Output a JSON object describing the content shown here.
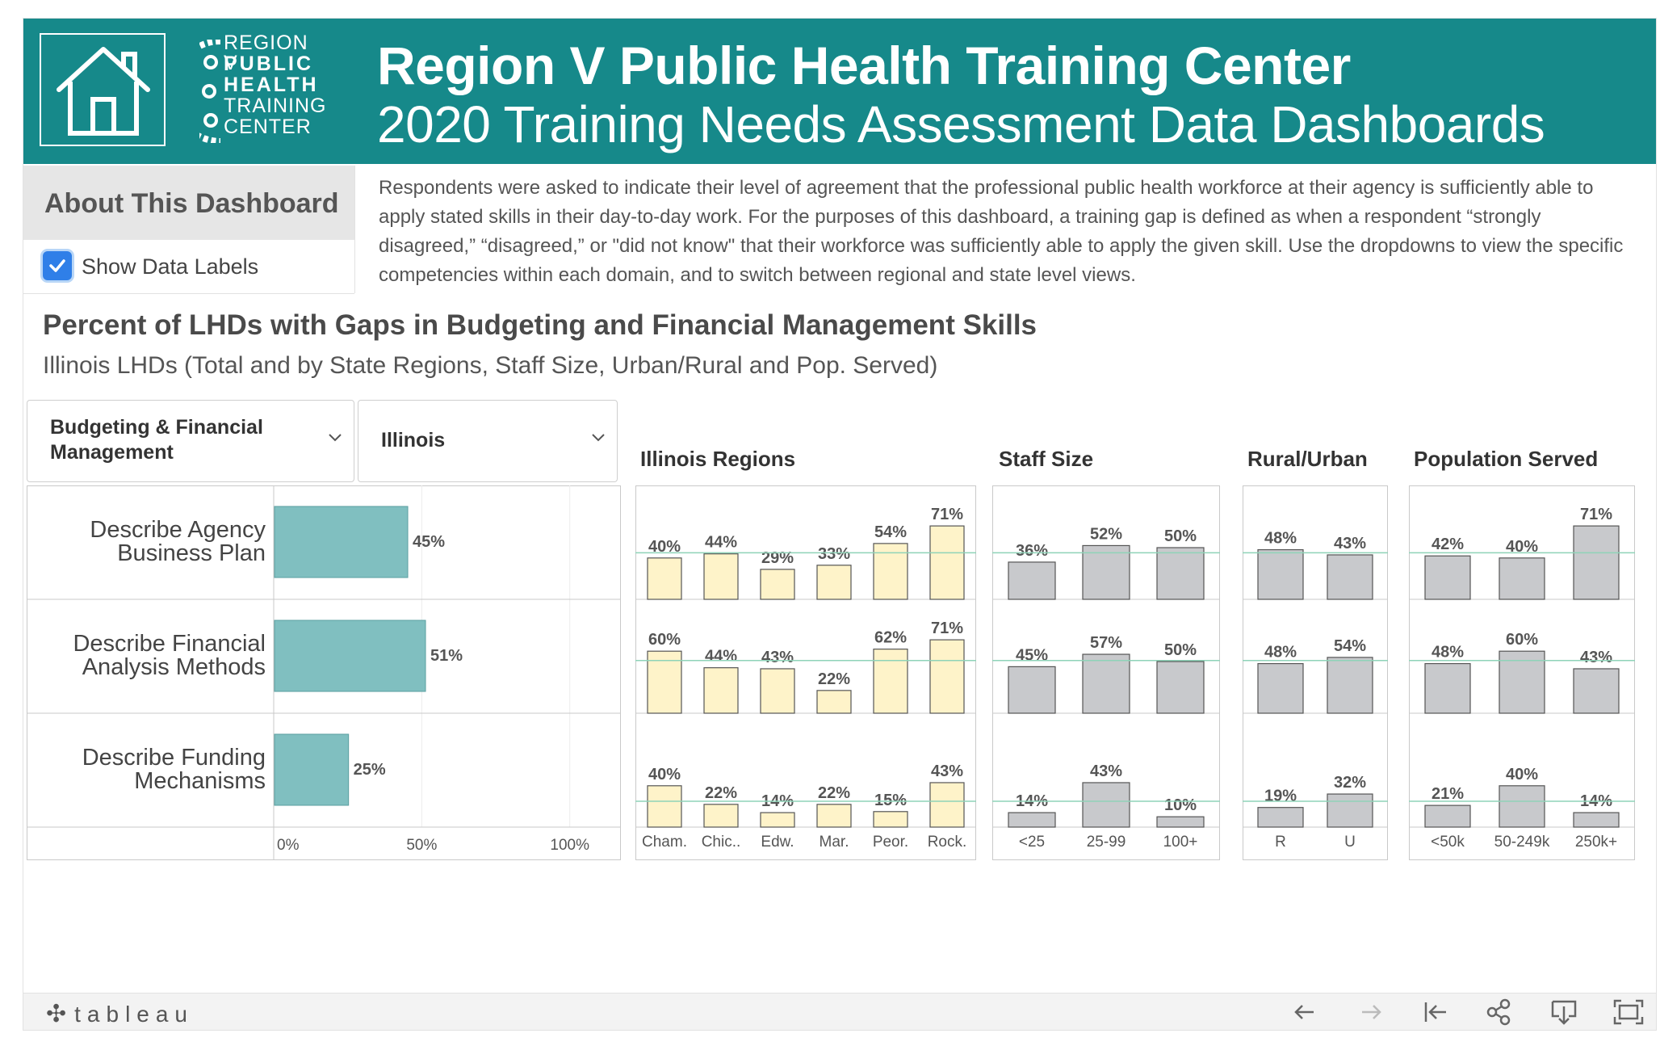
{
  "header": {
    "title_line1": "Region V Public Health Training Center",
    "title_line2": "2020 Training Needs Assessment Data Dashboards",
    "logo_lines": [
      "REGION V",
      "PUBLIC",
      "HEALTH",
      "TRAINING",
      "CENTER"
    ],
    "home_icon": "home-icon"
  },
  "about": {
    "title": "About This Dashboard",
    "show_data_labels": "Show Data Labels",
    "show_data_labels_checked": true,
    "description": "Respondents were asked to indicate their level of agreement that the professional public health workforce at their agency is sufficiently able to apply stated skills in their day-to-day work. For the purposes of this dashboard, a training gap is defined as when a respondent “strongly disagreed,” “disagreed,” or \"did not know\" that their workforce was sufficiently able to apply the given skill. Use the dropdowns to view the specific competencies within each domain, and to switch between regional and state level views."
  },
  "chart_title": "Percent of LHDs with Gaps in Budgeting and Financial Management Skills",
  "chart_subtitle": "Illinois LHDs (Total and by State Regions, Staff Size, Urban/Rural and Pop. Served)",
  "filters": {
    "domain": {
      "line1": "Budgeting & Financial",
      "line2": "Management"
    },
    "state": "Illinois"
  },
  "colors": {
    "header_bg": "#16898a",
    "total_bar": "#80bfc0",
    "region_bar": "#fef3c9",
    "group_bar": "#c8c9cc",
    "reference_line": "#8fd3b8"
  },
  "chart_data": {
    "type": "bar",
    "skills": [
      "Describe Agency Business Plan",
      "Describe Financial Analysis Methods",
      "Describe Funding Mechanisms"
    ],
    "skill_label_lines": [
      [
        "Describe Agency",
        "Business Plan"
      ],
      [
        "Describe Financial",
        "Analysis Methods"
      ],
      [
        "Describe Funding",
        "Mechanisms"
      ]
    ],
    "total": {
      "values": [
        45,
        51,
        25
      ],
      "labels": [
        "45%",
        "51%",
        "25%"
      ],
      "axis_ticks": [
        "0%",
        "50%",
        "100%"
      ],
      "xlim": [
        0,
        100
      ]
    },
    "panels": [
      {
        "title": "Illinois Regions",
        "categories": [
          "Cham.",
          "Chic..",
          "Edw.",
          "Mar.",
          "Peor.",
          "Rock."
        ],
        "series": [
          {
            "values": [
              40,
              44,
              29,
              33,
              54,
              71
            ],
            "labels": [
              "40%",
              "44%",
              "29%",
              "33%",
              "54%",
              "71%"
            ]
          },
          {
            "values": [
              60,
              44,
              43,
              22,
              62,
              71
            ],
            "labels": [
              "60%",
              "44%",
              "43%",
              "22%",
              "62%",
              "71%"
            ]
          },
          {
            "values": [
              40,
              22,
              14,
              22,
              15,
              43
            ],
            "labels": [
              "40%",
              "22%",
              "14%",
              "22%",
              "15%",
              "43%"
            ]
          }
        ]
      },
      {
        "title": "Staff Size",
        "categories": [
          "<25",
          "25-99",
          "100+"
        ],
        "series": [
          {
            "values": [
              36,
              52,
              50
            ],
            "labels": [
              "36%",
              "52%",
              "50%"
            ]
          },
          {
            "values": [
              45,
              57,
              50
            ],
            "labels": [
              "45%",
              "57%",
              "50%"
            ]
          },
          {
            "values": [
              14,
              43,
              10
            ],
            "labels": [
              "14%",
              "43%",
              "10%"
            ]
          }
        ]
      },
      {
        "title": "Rural/Urban",
        "categories": [
          "R",
          "U"
        ],
        "series": [
          {
            "values": [
              48,
              43
            ],
            "labels": [
              "48%",
              "43%"
            ]
          },
          {
            "values": [
              48,
              54
            ],
            "labels": [
              "48%",
              "54%"
            ]
          },
          {
            "values": [
              19,
              32
            ],
            "labels": [
              "19%",
              "32%"
            ]
          }
        ]
      },
      {
        "title": "Population Served",
        "categories": [
          "<50k",
          "50-249k",
          "250k+"
        ],
        "series": [
          {
            "values": [
              42,
              40,
              71
            ],
            "labels": [
              "42%",
              "40%",
              "71%"
            ]
          },
          {
            "values": [
              48,
              60,
              43
            ],
            "labels": [
              "48%",
              "60%",
              "43%"
            ]
          },
          {
            "values": [
              21,
              40,
              14
            ],
            "labels": [
              "21%",
              "40%",
              "14%"
            ]
          }
        ]
      }
    ]
  },
  "footer": {
    "brand": "tableau",
    "toolbar_icons": [
      "undo-icon",
      "redo-icon",
      "revert-icon",
      "share-icon",
      "download-icon",
      "fullscreen-icon"
    ]
  }
}
